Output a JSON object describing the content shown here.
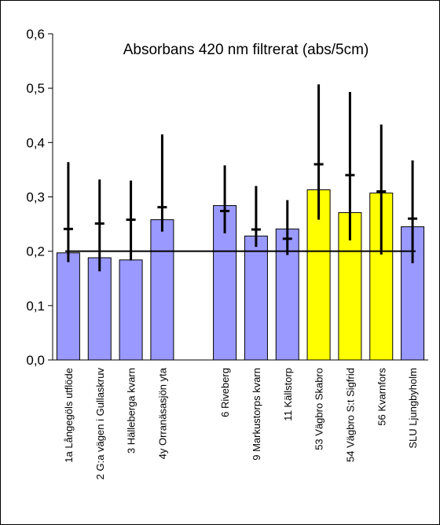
{
  "chart_data": {
    "type": "bar",
    "title": "Absorbans 420 nm filtrerat (abs/5cm)",
    "xlabel": "",
    "ylabel": "",
    "ylim": [
      0,
      0.6
    ],
    "yticks": [
      "0,0",
      "0,1",
      "0,2",
      "0,3",
      "0,4",
      "0,5",
      "0,6"
    ],
    "reference_line": 0.2,
    "grid": false,
    "legend": "none",
    "colors": {
      "blue": "#9999FF",
      "yellow": "#FFFF00",
      "line": "#000000"
    },
    "categories": [
      "1a Långegöls utflöde",
      "2 G:a vägen i Gullaskruv",
      "3 Hälleberga kvarn",
      "4y Orranäsasjön yta",
      "",
      "6 Riveberg",
      "9 Markustorps kvarn",
      "11 Källstorp",
      "53 Vägbro Skabro",
      "54 Vägbro S:t Sigfrid",
      "56 Kvarnfors",
      "SLU Ljungbyholm"
    ],
    "values": [
      0.197,
      0.188,
      0.184,
      0.258,
      null,
      0.284,
      0.228,
      0.241,
      0.313,
      0.271,
      0.307,
      0.245
    ],
    "bar_colors": [
      "blue",
      "blue",
      "blue",
      "blue",
      null,
      "blue",
      "blue",
      "blue",
      "yellow",
      "yellow",
      "yellow",
      "blue"
    ],
    "error_low": [
      0.18,
      0.163,
      0.183,
      0.236,
      null,
      0.233,
      0.208,
      0.193,
      0.258,
      0.22,
      0.194,
      0.178
    ],
    "error_high": [
      0.364,
      0.332,
      0.33,
      0.415,
      null,
      0.358,
      0.32,
      0.294,
      0.507,
      0.493,
      0.433,
      0.367
    ],
    "mean_marks": [
      0.241,
      0.251,
      0.258,
      0.281,
      null,
      0.274,
      0.24,
      0.223,
      0.36,
      0.34,
      0.31,
      0.26
    ]
  }
}
